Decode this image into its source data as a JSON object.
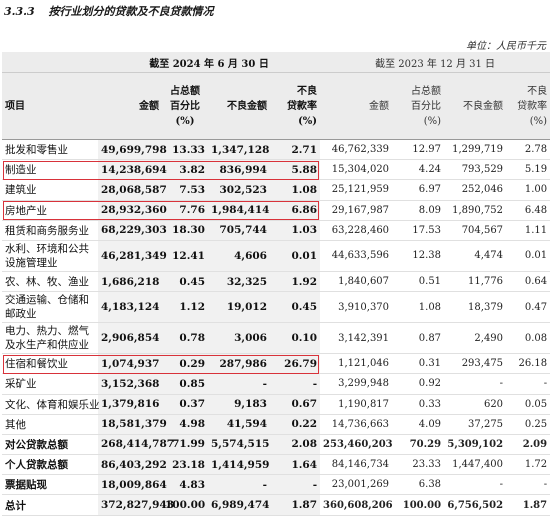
{
  "title": {
    "number": "3.3.3",
    "text": "按行业划分的贷款及不良贷款情况"
  },
  "unit": "单位：人民币千元",
  "header": {
    "item": "项目",
    "period_current": "截至 2024 年 6 月 30 日",
    "period_prior": "截至 2023 年 12 月 31 日",
    "amount": "金额",
    "share_line1": "占总额",
    "share_line2": "百分比",
    "share_unit": "(%)",
    "npl_amount": "不良金额",
    "npl_rate_line1": "不良",
    "npl_rate_line2": "贷款率",
    "npl_rate_unit": "(%)"
  },
  "rows": [
    {
      "name": "批发和零售业",
      "c": [
        "49,699,798",
        "13.33",
        "1,347,128",
        "2.71"
      ],
      "p": [
        "46,762,339",
        "12.97",
        "1,299,719",
        "2.78"
      ]
    },
    {
      "name": "制造业",
      "c": [
        "14,238,694",
        "3.82",
        "836,994",
        "5.88"
      ],
      "p": [
        "15,304,020",
        "4.24",
        "793,529",
        "5.19"
      ]
    },
    {
      "name": "建筑业",
      "c": [
        "28,068,587",
        "7.53",
        "302,523",
        "1.08"
      ],
      "p": [
        "25,121,959",
        "6.97",
        "252,046",
        "1.00"
      ]
    },
    {
      "name": "房地产业",
      "c": [
        "28,932,360",
        "7.76",
        "1,984,414",
        "6.86"
      ],
      "p": [
        "29,167,987",
        "8.09",
        "1,890,752",
        "6.48"
      ]
    },
    {
      "name": "租赁和商务服务业",
      "c": [
        "68,229,303",
        "18.30",
        "705,744",
        "1.03"
      ],
      "p": [
        "63,228,460",
        "17.53",
        "704,567",
        "1.11"
      ]
    },
    {
      "name": "水利、环境和公共设施管理业",
      "c": [
        "46,281,349",
        "12.41",
        "4,606",
        "0.01"
      ],
      "p": [
        "44,633,596",
        "12.38",
        "4,474",
        "0.01"
      ]
    },
    {
      "name": "农、林、牧、渔业",
      "c": [
        "1,686,218",
        "0.45",
        "32,325",
        "1.92"
      ],
      "p": [
        "1,840,607",
        "0.51",
        "11,776",
        "0.64"
      ]
    },
    {
      "name": "交通运输、仓储和邮政业",
      "c": [
        "4,183,124",
        "1.12",
        "19,012",
        "0.45"
      ],
      "p": [
        "3,910,370",
        "1.08",
        "18,379",
        "0.47"
      ]
    },
    {
      "name": "电力、热力、燃气及水生产和供应业",
      "c": [
        "2,906,854",
        "0.78",
        "3,006",
        "0.10"
      ],
      "p": [
        "3,142,391",
        "0.87",
        "2,490",
        "0.08"
      ]
    },
    {
      "name": "住宿和餐饮业",
      "c": [
        "1,074,937",
        "0.29",
        "287,986",
        "26.79"
      ],
      "p": [
        "1,121,046",
        "0.31",
        "293,475",
        "26.18"
      ]
    },
    {
      "name": "采矿业",
      "c": [
        "3,152,368",
        "0.85",
        "-",
        "-"
      ],
      "p": [
        "3,299,948",
        "0.92",
        "-",
        "-"
      ]
    },
    {
      "name": "文化、体育和娱乐业",
      "c": [
        "1,379,816",
        "0.37",
        "9,183",
        "0.67"
      ],
      "p": [
        "1,190,817",
        "0.33",
        "620",
        "0.05"
      ]
    },
    {
      "name": "其他",
      "c": [
        "18,581,379",
        "4.98",
        "41,594",
        "0.22"
      ],
      "p": [
        "14,736,663",
        "4.09",
        "37,275",
        "0.25"
      ]
    },
    {
      "name": "对公贷款总额",
      "c": [
        "268,414,787",
        "71.99",
        "5,574,515",
        "2.08"
      ],
      "p": [
        "253,460,203",
        "70.29",
        "5,309,102",
        "2.09"
      ]
    },
    {
      "name": "个人贷款总额",
      "c": [
        "86,403,292",
        "23.18",
        "1,414,959",
        "1.64"
      ],
      "p": [
        "84,146,734",
        "23.33",
        "1,447,400",
        "1.72"
      ]
    },
    {
      "name": "票据贴现",
      "c": [
        "18,009,864",
        "4.83",
        "-",
        "-"
      ],
      "p": [
        "23,001,269",
        "6.38",
        "-",
        "-"
      ]
    },
    {
      "name": "总计",
      "c": [
        "372,827,943",
        "100.00",
        "6,989,474",
        "1.87"
      ],
      "p": [
        "360,608,206",
        "100.00",
        "6,756,502",
        "1.87"
      ]
    }
  ]
}
